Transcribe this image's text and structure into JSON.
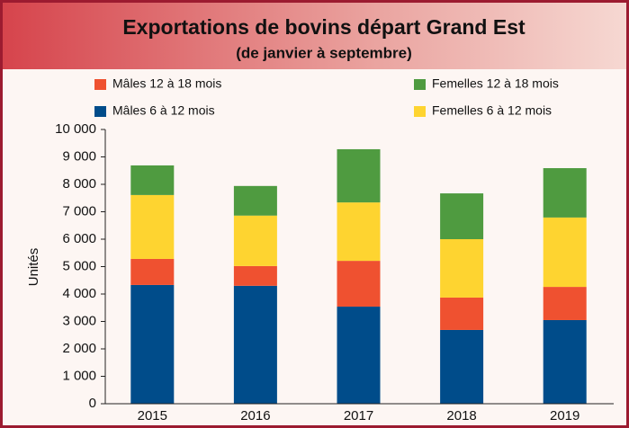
{
  "chart_data": {
    "type": "stacked_bar",
    "title": "Exportations de bovins départ Grand Est",
    "subtitle": "(de janvier à septembre)",
    "y_label": "Unités",
    "categories": [
      "2015",
      "2016",
      "2017",
      "2018",
      "2019"
    ],
    "series": [
      {
        "name": "Mâles 6 à 12 mois",
        "color": "#004c8a",
        "values": [
          4330,
          4300,
          3540,
          2690,
          3050
        ]
      },
      {
        "name": "Mâles 12 à 18 mois",
        "color": "#ef5130",
        "values": [
          950,
          720,
          1670,
          1180,
          1210
        ]
      },
      {
        "name": "Femelles 6 à 12 mois",
        "color": "#fed430",
        "values": [
          2330,
          1840,
          2130,
          2130,
          2530
        ]
      },
      {
        "name": "Femelles 12 à 18 mois",
        "color": "#4f9b40",
        "values": [
          1080,
          1080,
          1940,
          1670,
          1800
        ]
      }
    ],
    "ylim": [
      0,
      10000
    ],
    "yticks": [
      0,
      {
        "value": 1000,
        "label": "1 000"
      },
      {
        "value": 2000,
        "label": "2 000"
      },
      {
        "value": 3000,
        "label": "3 000"
      },
      {
        "value": 4000,
        "label": "4 000"
      },
      {
        "value": 5000,
        "label": "5 000"
      },
      {
        "value": 6000,
        "label": "6 000"
      },
      {
        "value": 7000,
        "label": "7 000"
      },
      {
        "value": 8000,
        "label": "8 000"
      },
      {
        "value": 9000,
        "label": "9 000"
      },
      {
        "value": 10000,
        "label": "10 000"
      }
    ]
  }
}
